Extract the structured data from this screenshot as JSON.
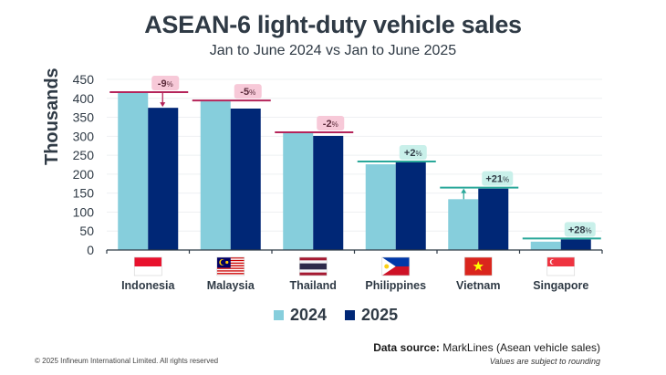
{
  "chart_data": {
    "type": "bar",
    "title": "ASEAN-6 light-duty vehicle sales",
    "subtitle": "Jan to June 2024 vs Jan to June 2025",
    "xlabel": "",
    "ylabel": "Thousands",
    "ylim": [
      0,
      450
    ],
    "yticks": [
      0,
      50,
      100,
      150,
      200,
      250,
      300,
      350,
      400,
      450
    ],
    "grid": true,
    "legend_position": "bottom-center",
    "categories": [
      "Indonesia",
      "Malaysia",
      "Thailand",
      "Philippines",
      "Vietnam",
      "Singapore"
    ],
    "flags": [
      "indonesia-flag",
      "malaysia-flag",
      "thailand-flag",
      "philippines-flag",
      "vietnam-flag",
      "singapore-flag"
    ],
    "series": [
      {
        "name": "2024",
        "color": "#86cedc",
        "values": [
          414,
          392,
          308,
          226,
          134,
          22
        ]
      },
      {
        "name": "2025",
        "color": "#002776",
        "values": [
          375,
          373,
          301,
          231,
          162,
          28
        ]
      }
    ],
    "annotations": [
      {
        "category": "Indonesia",
        "label": "-9",
        "direction": "down"
      },
      {
        "category": "Malaysia",
        "label": "-5",
        "direction": "down"
      },
      {
        "category": "Thailand",
        "label": "-2",
        "direction": "down"
      },
      {
        "category": "Philippines",
        "label": "+2",
        "direction": "up"
      },
      {
        "category": "Vietnam",
        "label": "+21",
        "direction": "up"
      },
      {
        "category": "Singapore",
        "label": "+28",
        "direction": "up"
      }
    ],
    "colors": {
      "decline_line": "#b5245a",
      "decline_box": "#f7c9d8",
      "decline_text": "#5a2a3a",
      "growth_line": "#2aa89a",
      "growth_box": "#c9f0ea",
      "growth_text": "#2f3a45"
    }
  },
  "legend": {
    "items": [
      {
        "label": "2024"
      },
      {
        "label": "2025"
      }
    ]
  },
  "footer": {
    "source_label": "Data source:",
    "source_value": " MarkLines (Asean vehicle sales)",
    "rounding_note": "Values are subject to rounding",
    "copyright": "© 2025 Infineum International Limited. All rights reserved"
  }
}
